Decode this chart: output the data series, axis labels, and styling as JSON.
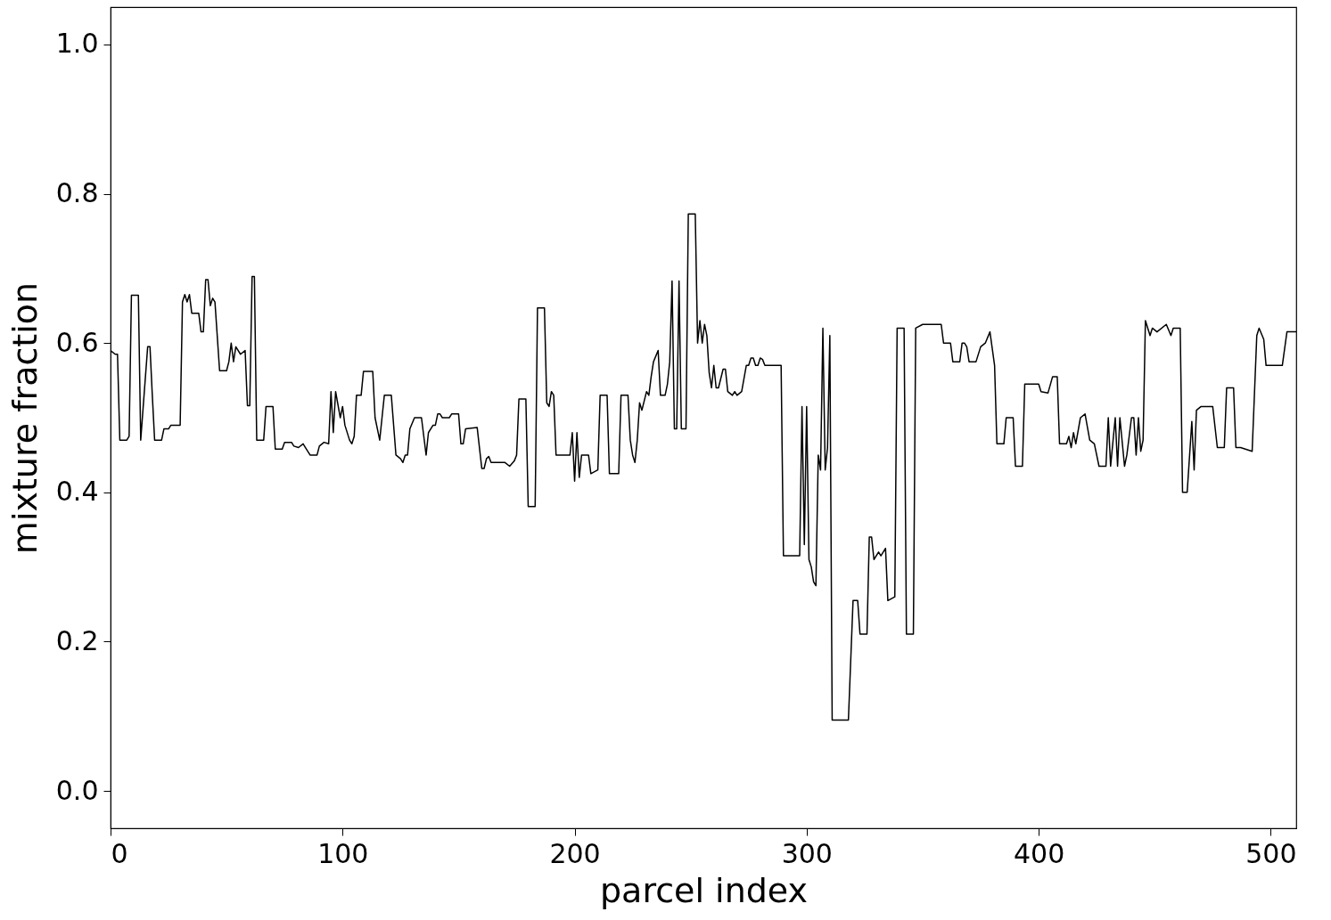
{
  "chart_data": {
    "type": "line",
    "xlabel": "parcel index",
    "ylabel": "mixture fraction",
    "x": [
      0,
      2,
      3,
      4,
      7,
      8,
      9,
      12,
      13,
      16,
      17,
      18,
      19,
      22,
      23,
      25,
      26,
      30,
      31,
      32,
      33,
      34,
      35,
      38,
      39,
      40,
      41,
      42,
      43,
      44,
      45,
      47,
      50,
      51,
      52,
      53,
      54,
      56,
      58,
      59,
      60,
      61,
      62,
      63,
      66,
      67,
      70,
      71,
      74,
      75,
      78,
      79,
      81,
      83,
      84,
      86,
      89,
      90,
      92,
      94,
      95,
      96,
      97,
      99,
      100,
      101,
      103,
      104,
      105,
      106,
      108,
      109,
      113,
      114,
      116,
      117,
      118,
      121,
      123,
      125,
      126,
      127,
      128,
      129,
      131,
      134,
      136,
      137,
      139,
      140,
      141,
      142,
      143,
      146,
      147,
      150,
      151,
      152,
      153,
      158,
      160,
      161,
      162,
      163,
      164,
      170,
      172,
      174,
      175,
      176,
      179,
      180,
      183,
      184,
      187,
      188,
      189,
      190,
      191,
      192,
      198,
      199,
      200,
      201,
      202,
      203,
      206,
      207,
      210,
      211,
      214,
      215,
      219,
      220,
      223,
      224,
      225,
      226,
      227,
      228,
      229,
      231,
      232,
      233,
      234,
      236,
      237,
      239,
      240,
      241,
      242,
      243,
      244,
      245,
      246,
      248,
      249,
      252,
      253,
      254,
      255,
      256,
      257,
      258,
      259,
      260,
      261,
      262,
      264,
      265,
      266,
      268,
      269,
      270,
      272,
      274,
      275,
      276,
      277,
      278,
      279,
      280,
      281,
      282,
      289,
      290,
      297,
      298,
      299,
      300,
      301,
      302,
      303,
      304,
      305,
      306,
      307,
      308,
      309,
      310,
      311,
      318,
      320,
      322,
      323,
      326,
      327,
      328,
      329,
      331,
      332,
      334,
      335,
      338,
      339,
      342,
      343,
      346,
      347,
      350,
      358,
      359,
      362,
      363,
      366,
      367,
      368,
      369,
      370,
      373,
      375,
      377,
      379,
      381,
      382,
      385,
      386,
      389,
      390,
      393,
      394,
      400,
      401,
      404,
      406,
      408,
      409,
      412,
      413,
      414,
      415,
      416,
      418,
      420,
      422,
      424,
      426,
      429,
      430,
      431,
      433,
      434,
      435,
      437,
      438,
      440,
      441,
      442,
      443,
      444,
      445,
      446,
      448,
      449,
      451,
      455,
      457,
      458,
      461,
      462,
      464,
      466,
      467,
      468,
      470,
      475,
      477,
      480,
      481,
      484,
      485,
      487,
      492,
      494,
      495,
      497,
      498,
      505,
      507,
      511
    ],
    "series": [
      {
        "color": "#000000",
        "values": [
          0.59,
          0.585,
          0.585,
          0.47,
          0.47,
          0.475,
          0.664,
          0.664,
          0.47,
          0.595,
          0.595,
          0.53,
          0.47,
          0.47,
          0.485,
          0.485,
          0.49,
          0.49,
          0.655,
          0.665,
          0.655,
          0.665,
          0.64,
          0.64,
          0.615,
          0.615,
          0.685,
          0.685,
          0.65,
          0.66,
          0.655,
          0.563,
          0.563,
          0.575,
          0.6,
          0.575,
          0.595,
          0.585,
          0.59,
          0.516,
          0.516,
          0.689,
          0.689,
          0.47,
          0.47,
          0.515,
          0.515,
          0.458,
          0.458,
          0.467,
          0.467,
          0.462,
          0.46,
          0.465,
          0.46,
          0.45,
          0.45,
          0.462,
          0.467,
          0.465,
          0.535,
          0.48,
          0.535,
          0.5,
          0.515,
          0.49,
          0.47,
          0.465,
          0.475,
          0.53,
          0.53,
          0.562,
          0.562,
          0.5,
          0.47,
          0.5,
          0.53,
          0.53,
          0.45,
          0.445,
          0.44,
          0.45,
          0.45,
          0.485,
          0.5,
          0.5,
          0.45,
          0.48,
          0.49,
          0.49,
          0.505,
          0.505,
          0.5,
          0.5,
          0.505,
          0.505,
          0.465,
          0.465,
          0.485,
          0.487,
          0.432,
          0.432,
          0.445,
          0.448,
          0.44,
          0.44,
          0.435,
          0.442,
          0.45,
          0.525,
          0.525,
          0.381,
          0.381,
          0.647,
          0.647,
          0.52,
          0.515,
          0.535,
          0.53,
          0.45,
          0.45,
          0.48,
          0.415,
          0.48,
          0.42,
          0.45,
          0.45,
          0.425,
          0.43,
          0.53,
          0.53,
          0.425,
          0.425,
          0.53,
          0.53,
          0.47,
          0.45,
          0.44,
          0.47,
          0.52,
          0.51,
          0.535,
          0.53,
          0.555,
          0.575,
          0.59,
          0.53,
          0.53,
          0.545,
          0.575,
          0.683,
          0.485,
          0.485,
          0.683,
          0.485,
          0.485,
          0.773,
          0.773,
          0.6,
          0.63,
          0.6,
          0.625,
          0.61,
          0.56,
          0.54,
          0.57,
          0.54,
          0.54,
          0.565,
          0.565,
          0.535,
          0.53,
          0.535,
          0.53,
          0.535,
          0.57,
          0.57,
          0.58,
          0.58,
          0.57,
          0.57,
          0.58,
          0.578,
          0.57,
          0.57,
          0.315,
          0.315,
          0.515,
          0.33,
          0.515,
          0.31,
          0.3,
          0.28,
          0.275,
          0.45,
          0.43,
          0.62,
          0.43,
          0.46,
          0.61,
          0.095,
          0.095,
          0.255,
          0.255,
          0.21,
          0.21,
          0.34,
          0.34,
          0.31,
          0.32,
          0.315,
          0.325,
          0.255,
          0.26,
          0.62,
          0.62,
          0.21,
          0.21,
          0.62,
          0.625,
          0.625,
          0.6,
          0.6,
          0.575,
          0.575,
          0.6,
          0.6,
          0.595,
          0.575,
          0.575,
          0.595,
          0.6,
          0.615,
          0.57,
          0.465,
          0.465,
          0.5,
          0.5,
          0.435,
          0.435,
          0.545,
          0.545,
          0.535,
          0.533,
          0.555,
          0.555,
          0.465,
          0.465,
          0.475,
          0.46,
          0.48,
          0.465,
          0.5,
          0.505,
          0.47,
          0.465,
          0.435,
          0.435,
          0.5,
          0.435,
          0.5,
          0.435,
          0.5,
          0.435,
          0.45,
          0.5,
          0.5,
          0.45,
          0.5,
          0.455,
          0.47,
          0.63,
          0.61,
          0.62,
          0.615,
          0.625,
          0.61,
          0.62,
          0.62,
          0.4,
          0.4,
          0.495,
          0.43,
          0.51,
          0.515,
          0.515,
          0.46,
          0.46,
          0.54,
          0.54,
          0.46,
          0.46,
          0.455,
          0.61,
          0.62,
          0.605,
          0.57,
          0.57,
          0.615,
          0.615
        ]
      }
    ],
    "xlim": [
      0,
      511
    ],
    "ylim": [
      -0.05,
      1.05
    ],
    "xticks": [
      0,
      100,
      200,
      300,
      400,
      500
    ],
    "yticks": [
      {
        "value": 0,
        "label": "0.0"
      },
      {
        "value": 0.2,
        "label": "0.2"
      },
      {
        "value": 0.4,
        "label": "0.4"
      },
      {
        "value": 0.6,
        "label": "0.6"
      },
      {
        "value": 0.8,
        "label": "0.8"
      },
      {
        "value": 1,
        "label": "1.0"
      }
    ],
    "grid": false,
    "marker": "none",
    "line_style": "solid"
  }
}
